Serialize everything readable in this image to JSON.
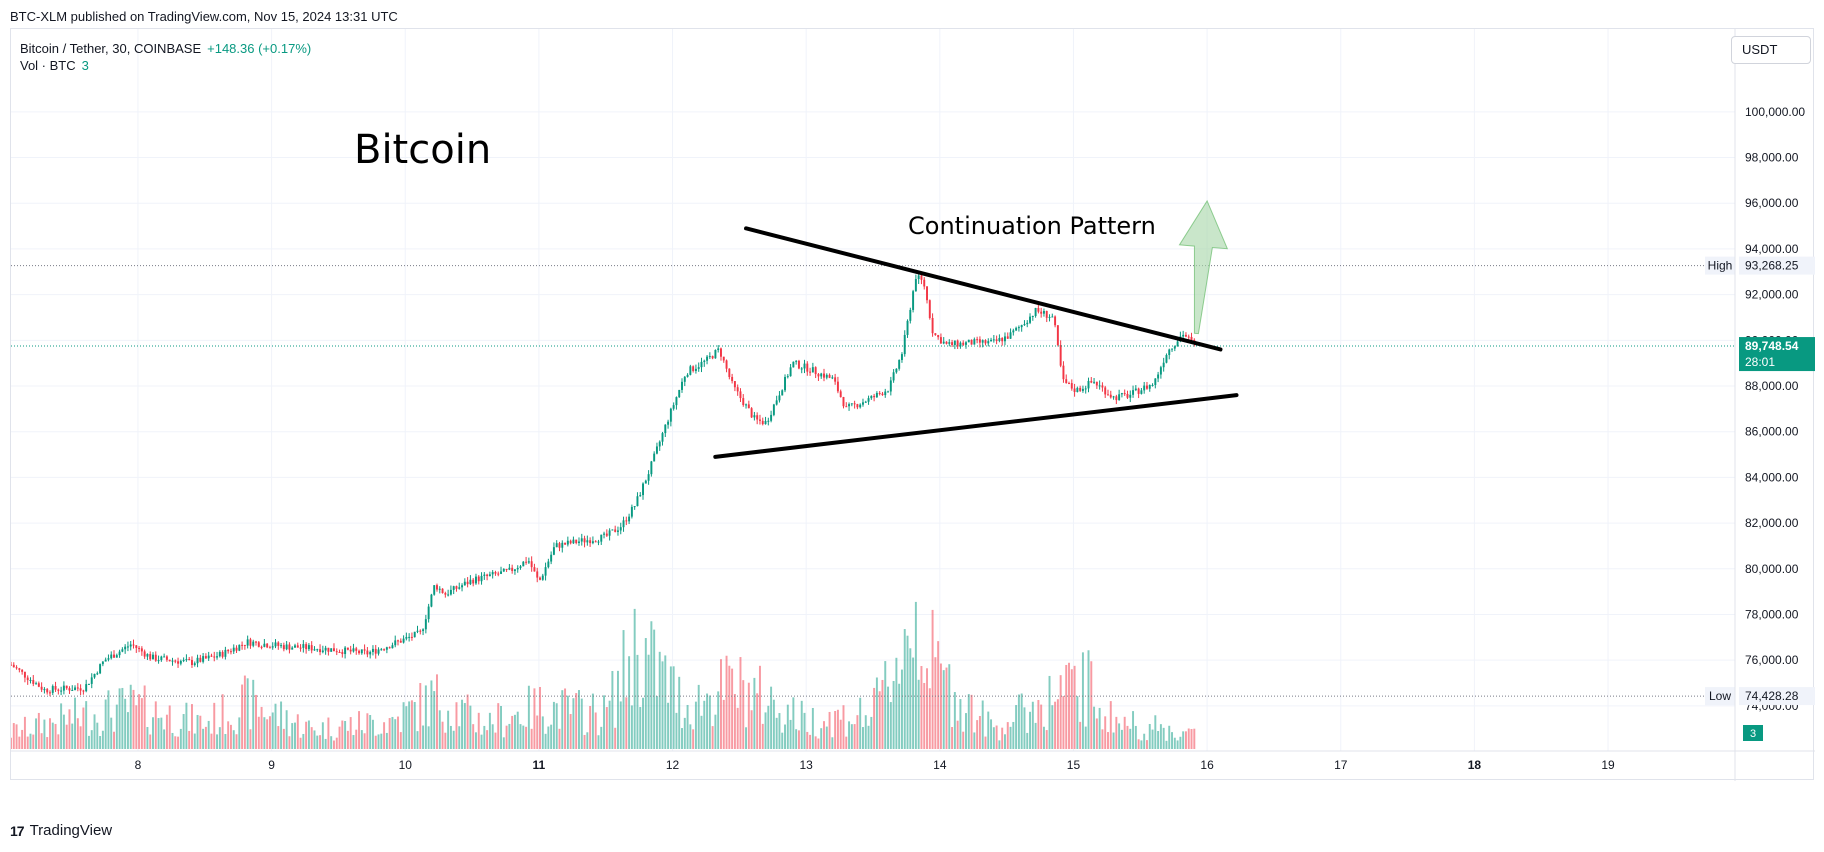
{
  "topbar": {
    "attribution": "BTC-XLM published on TradingView.com, Nov 15, 2024 13:31 UTC"
  },
  "header": {
    "symbol": "Bitcoin / Tether, 30, COINBASE",
    "change": "+148.36 (+0.17%)",
    "vol_label": "Vol · BTC",
    "vol_value": "3"
  },
  "currency_button": "USDT",
  "footer": {
    "logo_glyph": "17",
    "brand": "TradingView"
  },
  "colors": {
    "up": "#089981",
    "down": "#f23645",
    "last_price_bg": "#089981",
    "arrow": "#a5d6a7",
    "line": "#000000"
  },
  "icons": [
    "tradingview-logo-icon"
  ],
  "annotations": {
    "title": "Bitcoin",
    "pattern": "Continuation Pattern",
    "high_label": "High",
    "high_value": "93,268.25",
    "low_label": "Low",
    "low_value": "74,428.28",
    "last_price": "89,748.54",
    "countdown": "28:01",
    "volume_badge": "3"
  },
  "chart_data": {
    "type": "candlestick",
    "x_axis": {
      "ticks": [
        "8",
        "9",
        "10",
        "11",
        "12",
        "13",
        "14",
        "15",
        "16",
        "17",
        "18",
        "19"
      ],
      "bold": [
        "11",
        "18"
      ]
    },
    "y_axis": {
      "ticks": [
        "100,000.00",
        "98,000.00",
        "96,000.00",
        "94,000.00",
        "92,000.00",
        "90,000.00",
        "88,000.00",
        "86,000.00",
        "84,000.00",
        "82,000.00",
        "80,000.00",
        "78,000.00",
        "76,000.00",
        "74,000.00"
      ],
      "range": [
        73600,
        101000
      ]
    },
    "x_range": [
      7.05,
      19.95
    ],
    "price_path": [
      [
        7.05,
        75800
      ],
      [
        7.3,
        74700
      ],
      [
        7.6,
        74800
      ],
      [
        7.75,
        76000
      ],
      [
        7.95,
        76700
      ],
      [
        8.1,
        76100
      ],
      [
        8.4,
        75900
      ],
      [
        8.6,
        76200
      ],
      [
        8.82,
        76800
      ],
      [
        9.1,
        76600
      ],
      [
        9.4,
        76500
      ],
      [
        9.72,
        76300
      ],
      [
        9.9,
        76700
      ],
      [
        10.12,
        77200
      ],
      [
        10.22,
        79300
      ],
      [
        10.3,
        78900
      ],
      [
        10.5,
        79500
      ],
      [
        10.78,
        79900
      ],
      [
        10.92,
        80400
      ],
      [
        11.0,
        79400
      ],
      [
        11.12,
        81000
      ],
      [
        11.3,
        81200
      ],
      [
        11.5,
        81400
      ],
      [
        11.62,
        81900
      ],
      [
        11.72,
        82800
      ],
      [
        11.82,
        84200
      ],
      [
        11.95,
        86300
      ],
      [
        12.1,
        88600
      ],
      [
        12.25,
        89100
      ],
      [
        12.35,
        89600
      ],
      [
        12.45,
        88000
      ],
      [
        12.62,
        86500
      ],
      [
        12.7,
        86400
      ],
      [
        12.9,
        89000
      ],
      [
        13.0,
        88800
      ],
      [
        13.2,
        88300
      ],
      [
        13.3,
        87000
      ],
      [
        13.5,
        87500
      ],
      [
        13.62,
        87900
      ],
      [
        13.72,
        89500
      ],
      [
        13.82,
        92800
      ],
      [
        13.88,
        92500
      ],
      [
        13.95,
        90300
      ],
      [
        14.05,
        89800
      ],
      [
        14.25,
        89900
      ],
      [
        14.4,
        89900
      ],
      [
        14.52,
        90200
      ],
      [
        14.6,
        90600
      ],
      [
        14.72,
        91300
      ],
      [
        14.85,
        91000
      ],
      [
        14.92,
        88200
      ],
      [
        15.02,
        87800
      ],
      [
        15.15,
        88200
      ],
      [
        15.3,
        87500
      ],
      [
        15.42,
        87600
      ],
      [
        15.52,
        87900
      ],
      [
        15.6,
        88100
      ],
      [
        15.7,
        89500
      ],
      [
        15.82,
        90300
      ],
      [
        15.92,
        89700
      ]
    ],
    "volume_path": [
      [
        7.05,
        0.12
      ],
      [
        7.5,
        0.22
      ],
      [
        7.95,
        0.3
      ],
      [
        8.5,
        0.18
      ],
      [
        8.82,
        0.33
      ],
      [
        9.3,
        0.14
      ],
      [
        9.9,
        0.2
      ],
      [
        10.22,
        0.36
      ],
      [
        10.6,
        0.18
      ],
      [
        11.0,
        0.3
      ],
      [
        11.5,
        0.25
      ],
      [
        11.72,
        0.72
      ],
      [
        11.9,
        0.55
      ],
      [
        12.1,
        0.3
      ],
      [
        12.45,
        0.45
      ],
      [
        12.7,
        0.35
      ],
      [
        13.0,
        0.2
      ],
      [
        13.5,
        0.25
      ],
      [
        13.82,
        0.95
      ],
      [
        13.95,
        0.6
      ],
      [
        14.1,
        0.4
      ],
      [
        14.4,
        0.15
      ],
      [
        14.92,
        0.4
      ],
      [
        15.1,
        0.45
      ],
      [
        15.3,
        0.2
      ],
      [
        15.6,
        0.15
      ],
      [
        15.92,
        0.1
      ]
    ],
    "upper_trendline": [
      [
        12.55,
        94900
      ],
      [
        16.1,
        89600
      ]
    ],
    "lower_trendline": [
      [
        12.32,
        84900
      ],
      [
        16.22,
        87600
      ]
    ],
    "projection_arrow": {
      "from": [
        15.92,
        90300
      ],
      "to": [
        16.0,
        96100
      ]
    }
  }
}
